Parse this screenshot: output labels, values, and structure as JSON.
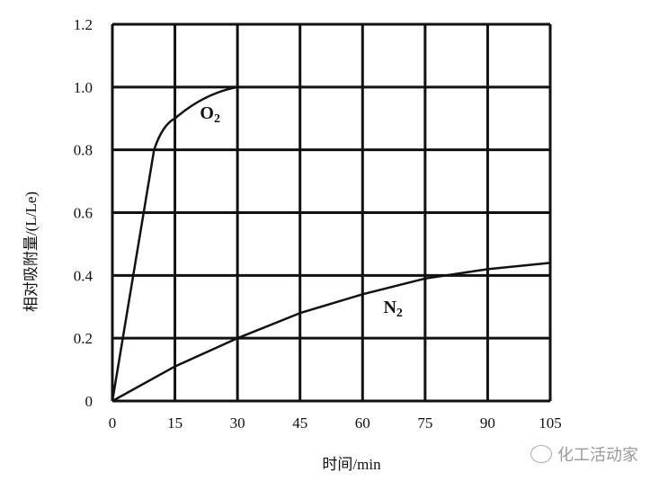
{
  "chart_data": {
    "type": "line",
    "title": "",
    "xlabel": "时间/min",
    "ylabel": "相对吸附量/(L/Le)",
    "xlim": [
      0,
      105
    ],
    "ylim": [
      0,
      1.2
    ],
    "x_ticks": [
      "0",
      "15",
      "30",
      "45",
      "60",
      "75",
      "90",
      "105"
    ],
    "y_ticks": [
      "0",
      "0.2",
      "0.4",
      "0.6",
      "0.8",
      "1.0",
      "1.2"
    ],
    "grid": true,
    "legend": "inline labels",
    "series": [
      {
        "name": "O2",
        "x": [
          0,
          10,
          12,
          15,
          20,
          25,
          30
        ],
        "values": [
          0,
          0.8,
          0.86,
          0.9,
          0.95,
          0.98,
          1.0
        ]
      },
      {
        "name": "N2",
        "x": [
          0,
          15,
          30,
          45,
          60,
          75,
          90,
          105
        ],
        "values": [
          0,
          0.11,
          0.2,
          0.28,
          0.34,
          0.39,
          0.42,
          0.44
        ]
      }
    ],
    "annotations": [
      {
        "text": "O2",
        "x": 21,
        "y": 0.9
      },
      {
        "text": "N2",
        "x": 65,
        "y": 0.28
      }
    ]
  },
  "watermark": {
    "text": "化工活动家"
  }
}
